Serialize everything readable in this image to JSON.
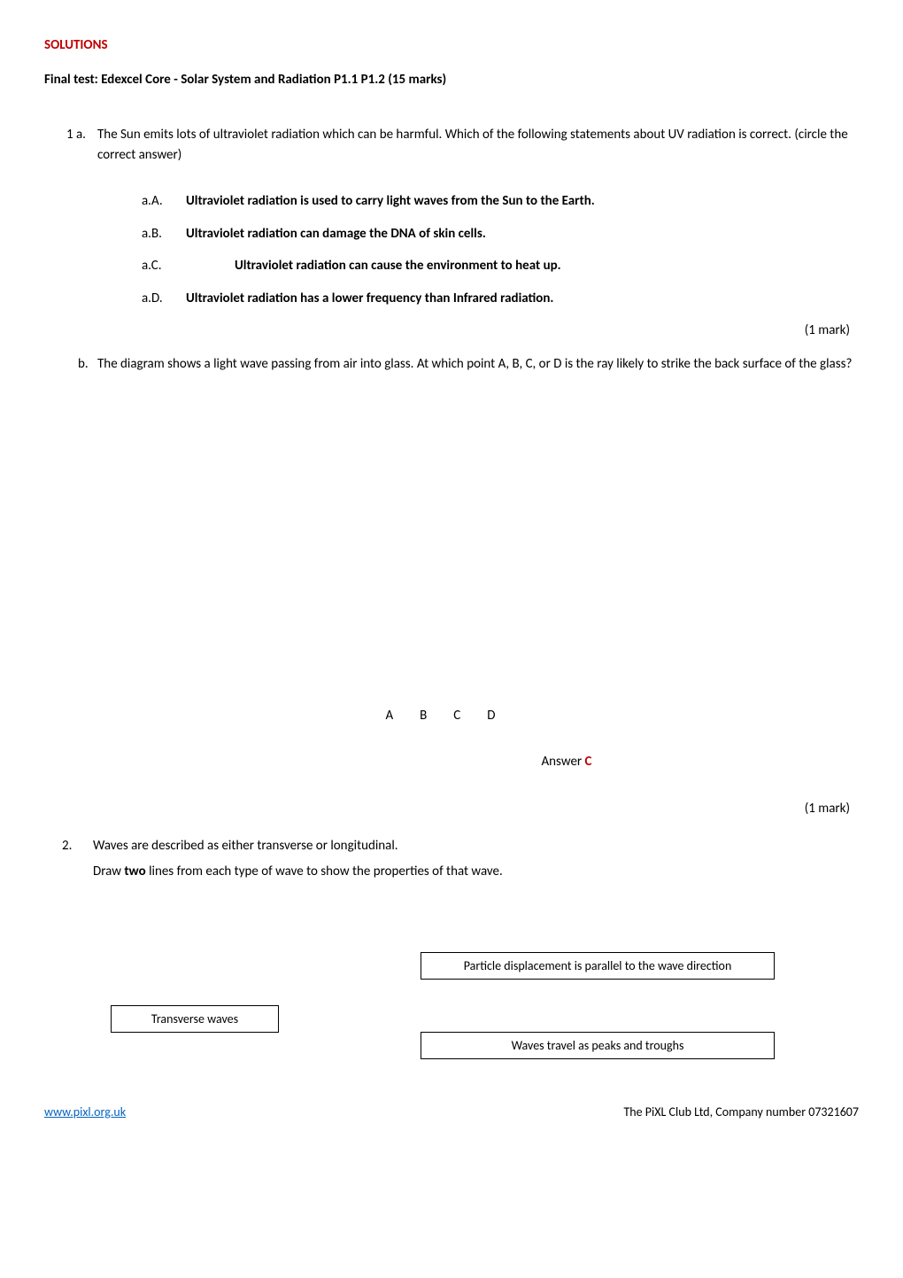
{
  "header": {
    "solutions": "SOLUTIONS"
  },
  "title": "Final test:  Edexcel Core - Solar System and Radiation  P1.1 P1.2  (15 marks)",
  "q1": {
    "num": "1 a.",
    "intro": "The Sun emits lots of ultraviolet radiation which can be harmful. Which of the following statements about UV radiation is correct. (circle the correct answer)",
    "options": {
      "a": {
        "label": "a.A.",
        "text": "Ultraviolet radiation is used to carry light waves from the Sun to the Earth."
      },
      "b": {
        "label": "a.B.",
        "text": "Ultraviolet radiation can damage the DNA of skin cells."
      },
      "c": {
        "label": "a.C.",
        "text": "Ultraviolet radiation can cause the environment to heat up."
      },
      "d": {
        "label": "a.D.",
        "text": "Ultraviolet radiation has a lower frequency than Infrared radiation."
      }
    },
    "mark": "(1 mark)"
  },
  "q1b": {
    "num": "b.",
    "text": "The diagram shows a light wave passing from air into glass. At which point A, B, C, or D is the ray likely to strike the back surface of the glass?",
    "abcd": "ABCD",
    "answer_label": "Answer  ",
    "answer_value": "C",
    "mark": "(1 mark)"
  },
  "q2": {
    "num": "2.",
    "text": "Waves are described as either transverse or longitudinal.",
    "draw_pre": "Draw ",
    "draw_bold": "two",
    "draw_post": " lines from each type of wave to show the properties of that wave."
  },
  "boxes": {
    "transverse": "Transverse waves",
    "particle": "Particle displacement is parallel to the wave direction",
    "peaks": "Waves travel as peaks and troughs"
  },
  "footer": {
    "link": "www.pixl.org.uk",
    "company": "The PiXL Club Ltd, Company number 07321607"
  },
  "colors": {
    "red": "#c00000",
    "link": "#0563c1",
    "text": "#000000",
    "bg": "#ffffff"
  }
}
